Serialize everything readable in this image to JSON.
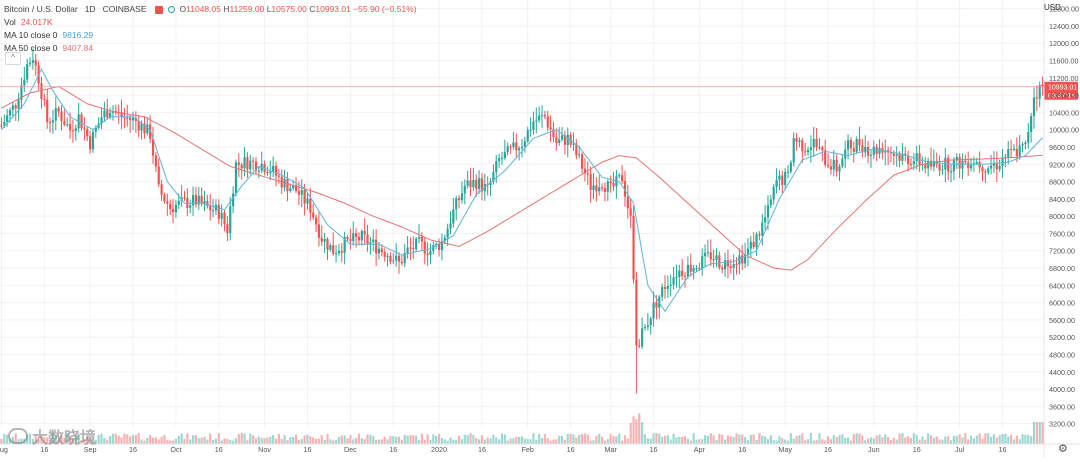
{
  "legend": {
    "symbol": "Bitcoin / U.S. Dollar",
    "interval": "1D",
    "exchange": "COINBASE",
    "ohlc": {
      "o_label": "O",
      "o": "11048.05",
      "h_label": "H",
      "h": "11259.00",
      "l_label": "L",
      "l": "10575.00",
      "c_label": "C",
      "c": "10993.01",
      "change": "−55.90 (−0.51%)"
    },
    "vol_label": "Vol",
    "vol_value": "24.017K",
    "ma10_label": "MA 10 close 0",
    "ma10_value": "9816.29",
    "ma50_label": "MA 50 close 0",
    "ma50_value": "9407.84",
    "collapse_glyph": "^"
  },
  "currency": "USD",
  "price_tag": {
    "price": "10993.01",
    "countdown": "03:47:15"
  },
  "watermark": "大数晓境",
  "settings_icon": "gear-icon",
  "colors": {
    "up": "#26a69a",
    "down": "#ef5350",
    "ma10": "#5fb4da",
    "ma50": "#e57373",
    "grid": "#f1f2f5",
    "axis_text": "#555555"
  },
  "chart_data": {
    "type": "candlestick",
    "title": "Bitcoin / U.S. Dollar",
    "y_range": [
      3100,
      13000
    ],
    "log_scale": false,
    "grid": true,
    "y_ticks": [
      12800,
      12400,
      12000,
      11600,
      11200,
      10800,
      10400,
      10000,
      9600,
      9200,
      8800,
      8400,
      8000,
      7600,
      7200,
      6800,
      6400,
      6000,
      5600,
      5200,
      4800,
      4400,
      4000,
      3600,
      3200
    ],
    "x_ticks": [
      {
        "label": "Aug",
        "day": 0
      },
      {
        "label": "16",
        "day": 15
      },
      {
        "label": "Sep",
        "day": 31
      },
      {
        "label": "16",
        "day": 46
      },
      {
        "label": "Oct",
        "day": 61
      },
      {
        "label": "16",
        "day": 76
      },
      {
        "label": "Nov",
        "day": 92
      },
      {
        "label": "16",
        "day": 107
      },
      {
        "label": "Dec",
        "day": 122
      },
      {
        "label": "16",
        "day": 137
      },
      {
        "label": "2020",
        "day": 153
      },
      {
        "label": "16",
        "day": 168
      },
      {
        "label": "Feb",
        "day": 184
      },
      {
        "label": "16",
        "day": 199
      },
      {
        "label": "Mar",
        "day": 213
      },
      {
        "label": "16",
        "day": 228
      },
      {
        "label": "Apr",
        "day": 244
      },
      {
        "label": "16",
        "day": 259
      },
      {
        "label": "May",
        "day": 274
      },
      {
        "label": "16",
        "day": 289
      },
      {
        "label": "Jun",
        "day": 305
      },
      {
        "label": "16",
        "day": 320
      },
      {
        "label": "Jul",
        "day": 335
      },
      {
        "label": "16",
        "day": 350
      }
    ],
    "total_days": 365,
    "close_anchors": [
      [
        0,
        10100
      ],
      [
        5,
        10600
      ],
      [
        9,
        11500
      ],
      [
        11,
        11700
      ],
      [
        13,
        11200
      ],
      [
        16,
        10200
      ],
      [
        20,
        10400
      ],
      [
        24,
        10000
      ],
      [
        27,
        10300
      ],
      [
        31,
        9700
      ],
      [
        35,
        10300
      ],
      [
        38,
        10500
      ],
      [
        42,
        10300
      ],
      [
        47,
        10200
      ],
      [
        52,
        9900
      ],
      [
        55,
        8600
      ],
      [
        59,
        8200
      ],
      [
        63,
        8300
      ],
      [
        68,
        8350
      ],
      [
        72,
        8200
      ],
      [
        76,
        8100
      ],
      [
        79,
        7700
      ],
      [
        82,
        9200
      ],
      [
        86,
        9250
      ],
      [
        91,
        9200
      ],
      [
        94,
        9100
      ],
      [
        98,
        8800
      ],
      [
        103,
        8600
      ],
      [
        108,
        8200
      ],
      [
        112,
        7500
      ],
      [
        116,
        7200
      ],
      [
        121,
        7400
      ],
      [
        126,
        7500
      ],
      [
        131,
        7300
      ],
      [
        136,
        7100
      ],
      [
        139,
        6900
      ],
      [
        142,
        7200
      ],
      [
        146,
        7350
      ],
      [
        150,
        7200
      ],
      [
        154,
        7400
      ],
      [
        158,
        8100
      ],
      [
        162,
        8700
      ],
      [
        166,
        8800
      ],
      [
        170,
        8600
      ],
      [
        174,
        9300
      ],
      [
        178,
        9500
      ],
      [
        182,
        9700
      ],
      [
        186,
        10200
      ],
      [
        190,
        10300
      ],
      [
        194,
        9700
      ],
      [
        198,
        9800
      ],
      [
        202,
        9300
      ],
      [
        206,
        8700
      ],
      [
        210,
        8800
      ],
      [
        213,
        8600
      ],
      [
        217,
        8900
      ],
      [
        220,
        7900
      ],
      [
        222,
        5000
      ],
      [
        225,
        5400
      ],
      [
        228,
        5900
      ],
      [
        232,
        6400
      ],
      [
        236,
        6700
      ],
      [
        240,
        6800
      ],
      [
        244,
        6900
      ],
      [
        248,
        7100
      ],
      [
        252,
        6900
      ],
      [
        256,
        7000
      ],
      [
        260,
        7100
      ],
      [
        264,
        7500
      ],
      [
        268,
        8100
      ],
      [
        271,
        8800
      ],
      [
        275,
        8900
      ],
      [
        277,
        9800
      ],
      [
        281,
        9600
      ],
      [
        284,
        9700
      ],
      [
        288,
        9300
      ],
      [
        292,
        9100
      ],
      [
        296,
        9600
      ],
      [
        300,
        9700
      ],
      [
        304,
        9500
      ],
      [
        308,
        9600
      ],
      [
        312,
        9450
      ],
      [
        316,
        9350
      ],
      [
        320,
        9300
      ],
      [
        324,
        9150
      ],
      [
        328,
        9200
      ],
      [
        332,
        9200
      ],
      [
        336,
        9250
      ],
      [
        340,
        9300
      ],
      [
        344,
        9150
      ],
      [
        348,
        9200
      ],
      [
        351,
        9400
      ],
      [
        355,
        9500
      ],
      [
        358,
        9600
      ],
      [
        361,
        10800
      ],
      [
        364,
        10993
      ]
    ],
    "ma10_anchors": [
      [
        0,
        10000
      ],
      [
        8,
        10600
      ],
      [
        14,
        11400
      ],
      [
        18,
        10900
      ],
      [
        24,
        10300
      ],
      [
        32,
        10000
      ],
      [
        38,
        10300
      ],
      [
        46,
        10300
      ],
      [
        52,
        10000
      ],
      [
        58,
        8800
      ],
      [
        64,
        8300
      ],
      [
        70,
        8300
      ],
      [
        78,
        8150
      ],
      [
        84,
        8700
      ],
      [
        90,
        9150
      ],
      [
        98,
        8950
      ],
      [
        106,
        8650
      ],
      [
        114,
        7800
      ],
      [
        122,
        7350
      ],
      [
        132,
        7350
      ],
      [
        140,
        7100
      ],
      [
        150,
        7250
      ],
      [
        158,
        7550
      ],
      [
        166,
        8500
      ],
      [
        176,
        9050
      ],
      [
        186,
        9800
      ],
      [
        194,
        10000
      ],
      [
        202,
        9600
      ],
      [
        210,
        8900
      ],
      [
        216,
        8800
      ],
      [
        221,
        8300
      ],
      [
        226,
        6400
      ],
      [
        232,
        5800
      ],
      [
        240,
        6600
      ],
      [
        248,
        6900
      ],
      [
        256,
        6950
      ],
      [
        264,
        7200
      ],
      [
        272,
        8400
      ],
      [
        280,
        9300
      ],
      [
        288,
        9500
      ],
      [
        296,
        9400
      ],
      [
        304,
        9550
      ],
      [
        314,
        9450
      ],
      [
        324,
        9250
      ],
      [
        334,
        9200
      ],
      [
        344,
        9200
      ],
      [
        352,
        9250
      ],
      [
        358,
        9400
      ],
      [
        364,
        9816
      ]
    ],
    "ma50_anchors": [
      [
        0,
        10500
      ],
      [
        10,
        10850
      ],
      [
        20,
        11000
      ],
      [
        30,
        10600
      ],
      [
        40,
        10400
      ],
      [
        50,
        10300
      ],
      [
        60,
        9950
      ],
      [
        70,
        9550
      ],
      [
        80,
        9150
      ],
      [
        90,
        8950
      ],
      [
        100,
        8750
      ],
      [
        110,
        8550
      ],
      [
        120,
        8300
      ],
      [
        130,
        8000
      ],
      [
        140,
        7750
      ],
      [
        150,
        7450
      ],
      [
        160,
        7300
      ],
      [
        170,
        7650
      ],
      [
        180,
        8050
      ],
      [
        190,
        8450
      ],
      [
        200,
        8850
      ],
      [
        210,
        9250
      ],
      [
        216,
        9400
      ],
      [
        222,
        9350
      ],
      [
        230,
        8900
      ],
      [
        240,
        8300
      ],
      [
        250,
        7700
      ],
      [
        260,
        7100
      ],
      [
        270,
        6800
      ],
      [
        276,
        6750
      ],
      [
        282,
        7000
      ],
      [
        292,
        7700
      ],
      [
        302,
        8350
      ],
      [
        312,
        8950
      ],
      [
        322,
        9200
      ],
      [
        332,
        9300
      ],
      [
        342,
        9320
      ],
      [
        352,
        9350
      ],
      [
        364,
        9408
      ]
    ],
    "volume_note": "relative volume bars along the bottom, colored by candle direction; spike around Mar 12-13"
  }
}
